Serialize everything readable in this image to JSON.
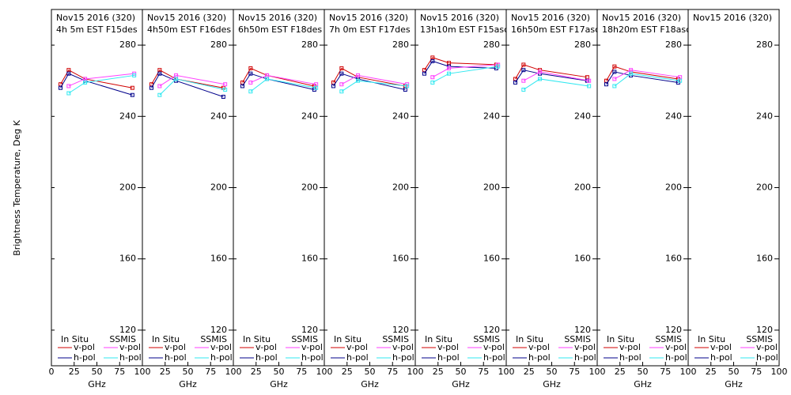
{
  "ylabel": "Brightness Temperature, Deg K",
  "chart_data": [
    {
      "type": "line",
      "title": "Nov15 2016 (320)",
      "subtitle": "4h 5m  EST F15des",
      "xlabel": "GHz",
      "xlim": [
        0,
        100
      ],
      "ylim": [
        100,
        300
      ],
      "xticks": [
        0,
        25,
        50,
        75,
        100
      ],
      "yticks": [
        120,
        160,
        200,
        240,
        280
      ],
      "groups": [
        {
          "name": "In Situ",
          "x": [
            10,
            19,
            37,
            89
          ],
          "series": [
            {
              "name": "v-pol",
              "color": "#d00000",
              "values": [
                258,
                266,
                261,
                256
              ]
            },
            {
              "name": "h-pol",
              "color": "#00008b",
              "values": [
                256,
                264,
                260,
                252
              ]
            }
          ]
        },
        {
          "name": "SSMIS",
          "x": [
            19,
            37,
            91
          ],
          "series": [
            {
              "name": "v-pol",
              "color": "#ff40ff",
              "values": [
                257,
                261,
                264
              ]
            },
            {
              "name": "h-pol",
              "color": "#30e8f0",
              "values": [
                253,
                259,
                263
              ]
            }
          ]
        }
      ]
    },
    {
      "type": "line",
      "title": "Nov15 2016 (320)",
      "subtitle": "4h50m  EST F16des",
      "xlabel": "GHz",
      "xlim": [
        0,
        100
      ],
      "ylim": [
        100,
        300
      ],
      "xticks": [
        25,
        50,
        75,
        100
      ],
      "yticks": [
        120,
        160,
        200,
        240,
        280
      ],
      "groups": [
        {
          "name": "In Situ",
          "x": [
            10,
            19,
            37,
            89
          ],
          "series": [
            {
              "name": "v-pol",
              "color": "#d00000",
              "values": [
                258,
                266,
                261,
                256
              ]
            },
            {
              "name": "h-pol",
              "color": "#00008b",
              "values": [
                256,
                264,
                260,
                251
              ]
            }
          ]
        },
        {
          "name": "SSMIS",
          "x": [
            19,
            37,
            91
          ],
          "series": [
            {
              "name": "v-pol",
              "color": "#ff40ff",
              "values": [
                257,
                263,
                258
              ]
            },
            {
              "name": "h-pol",
              "color": "#30e8f0",
              "values": [
                252,
                261,
                255
              ]
            }
          ]
        }
      ]
    },
    {
      "type": "line",
      "title": "Nov15 2016 (320)",
      "subtitle": "6h50m  EST F18des",
      "xlabel": "GHz",
      "xlim": [
        0,
        100
      ],
      "ylim": [
        100,
        300
      ],
      "xticks": [
        25,
        50,
        75,
        100
      ],
      "yticks": [
        120,
        160,
        200,
        240,
        280
      ],
      "groups": [
        {
          "name": "In Situ",
          "x": [
            10,
            19,
            37,
            89
          ],
          "series": [
            {
              "name": "v-pol",
              "color": "#d00000",
              "values": [
                259,
                267,
                263,
                257
              ]
            },
            {
              "name": "h-pol",
              "color": "#00008b",
              "values": [
                257,
                264,
                261,
                255
              ]
            }
          ]
        },
        {
          "name": "SSMIS",
          "x": [
            19,
            37,
            91
          ],
          "series": [
            {
              "name": "v-pol",
              "color": "#ff40ff",
              "values": [
                259,
                263,
                258
              ]
            },
            {
              "name": "h-pol",
              "color": "#30e8f0",
              "values": [
                254,
                261,
                256
              ]
            }
          ]
        }
      ]
    },
    {
      "type": "line",
      "title": "Nov15 2016 (320)",
      "subtitle": "7h 0m  EST F17des",
      "xlabel": "GHz",
      "xlim": [
        0,
        100
      ],
      "ylim": [
        100,
        300
      ],
      "xticks": [
        25,
        50,
        75,
        100
      ],
      "yticks": [
        120,
        160,
        200,
        240,
        280
      ],
      "groups": [
        {
          "name": "In Situ",
          "x": [
            10,
            19,
            37,
            89
          ],
          "series": [
            {
              "name": "v-pol",
              "color": "#d00000",
              "values": [
                259,
                267,
                262,
                257
              ]
            },
            {
              "name": "h-pol",
              "color": "#00008b",
              "values": [
                257,
                264,
                261,
                255
              ]
            }
          ]
        },
        {
          "name": "SSMIS",
          "x": [
            19,
            37,
            91
          ],
          "series": [
            {
              "name": "v-pol",
              "color": "#ff40ff",
              "values": [
                258,
                263,
                258
              ]
            },
            {
              "name": "h-pol",
              "color": "#30e8f0",
              "values": [
                254,
                260,
                257
              ]
            }
          ]
        }
      ]
    },
    {
      "type": "line",
      "title": "Nov15 2016 (320)",
      "subtitle": "13h10m  EST F15asc",
      "xlabel": "GHz",
      "xlim": [
        0,
        100
      ],
      "ylim": [
        100,
        300
      ],
      "xticks": [
        25,
        50,
        75,
        100
      ],
      "yticks": [
        120,
        160,
        200,
        240,
        280
      ],
      "groups": [
        {
          "name": "In Situ",
          "x": [
            10,
            19,
            37,
            89
          ],
          "series": [
            {
              "name": "v-pol",
              "color": "#d00000",
              "values": [
                266,
                273,
                270,
                269
              ]
            },
            {
              "name": "h-pol",
              "color": "#00008b",
              "values": [
                264,
                271,
                268,
                267
              ]
            }
          ]
        },
        {
          "name": "SSMIS",
          "x": [
            19,
            37,
            91
          ],
          "series": [
            {
              "name": "v-pol",
              "color": "#ff40ff",
              "values": [
                262,
                267,
                269
              ]
            },
            {
              "name": "h-pol",
              "color": "#30e8f0",
              "values": [
                259,
                264,
                268
              ]
            }
          ]
        }
      ]
    },
    {
      "type": "line",
      "title": "Nov15 2016 (320)",
      "subtitle": "16h50m  EST F17asc",
      "xlabel": "GHz",
      "xlim": [
        0,
        100
      ],
      "ylim": [
        100,
        300
      ],
      "xticks": [
        25,
        50,
        75,
        100
      ],
      "yticks": [
        120,
        160,
        200,
        240,
        280
      ],
      "groups": [
        {
          "name": "In Situ",
          "x": [
            10,
            19,
            37,
            89
          ],
          "series": [
            {
              "name": "v-pol",
              "color": "#d00000",
              "values": [
                261,
                269,
                266,
                262
              ]
            },
            {
              "name": "h-pol",
              "color": "#00008b",
              "values": [
                259,
                266,
                264,
                260
              ]
            }
          ]
        },
        {
          "name": "SSMIS",
          "x": [
            19,
            37,
            91
          ],
          "series": [
            {
              "name": "v-pol",
              "color": "#ff40ff",
              "values": [
                260,
                265,
                260
              ]
            },
            {
              "name": "h-pol",
              "color": "#30e8f0",
              "values": [
                255,
                261,
                257
              ]
            }
          ]
        }
      ]
    },
    {
      "type": "line",
      "title": "Nov15 2016 (320)",
      "subtitle": "18h20m  EST F18asc",
      "xlabel": "GHz",
      "xlim": [
        0,
        100
      ],
      "ylim": [
        100,
        300
      ],
      "xticks": [
        25,
        50,
        75,
        100
      ],
      "yticks": [
        120,
        160,
        200,
        240,
        280
      ],
      "groups": [
        {
          "name": "In Situ",
          "x": [
            10,
            19,
            37,
            89
          ],
          "series": [
            {
              "name": "v-pol",
              "color": "#d00000",
              "values": [
                260,
                268,
                265,
                261
              ]
            },
            {
              "name": "h-pol",
              "color": "#00008b",
              "values": [
                258,
                265,
                263,
                259
              ]
            }
          ]
        },
        {
          "name": "SSMIS",
          "x": [
            19,
            37,
            91
          ],
          "series": [
            {
              "name": "v-pol",
              "color": "#ff40ff",
              "values": [
                261,
                266,
                262
              ]
            },
            {
              "name": "h-pol",
              "color": "#30e8f0",
              "values": [
                257,
                264,
                260
              ]
            }
          ]
        }
      ]
    },
    {
      "type": "line",
      "title": "Nov15 2016 (320)",
      "xlabel": "GHz",
      "xlim": [
        0,
        100
      ],
      "ylim": [
        100,
        300
      ],
      "xticks": [
        25,
        50,
        75,
        100
      ],
      "yticks": [
        120,
        160,
        200,
        240,
        280
      ],
      "groups": [
        {
          "name": "In Situ",
          "x": [],
          "series": [
            {
              "name": "v-pol",
              "color": "#d00000",
              "values": []
            },
            {
              "name": "h-pol",
              "color": "#00008b",
              "values": []
            }
          ]
        },
        {
          "name": "SSMIS",
          "x": [],
          "series": [
            {
              "name": "v-pol",
              "color": "#ff40ff",
              "values": []
            },
            {
              "name": "h-pol",
              "color": "#30e8f0",
              "values": []
            }
          ]
        }
      ]
    }
  ]
}
